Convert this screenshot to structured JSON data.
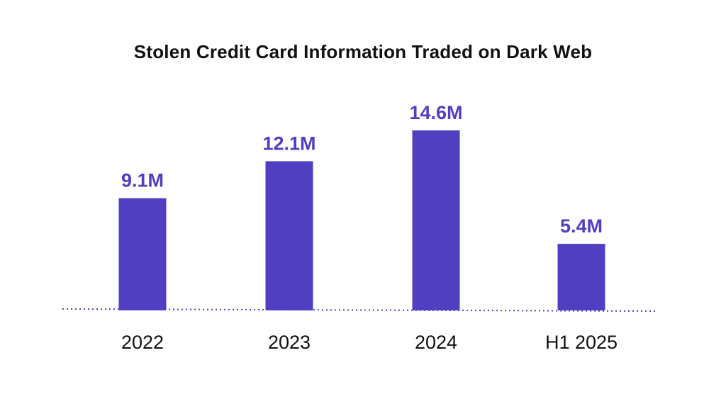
{
  "chart_data": {
    "type": "bar",
    "title": "Stolen Credit Card Information Traded on Dark Web",
    "categories": [
      "2022",
      "2023",
      "2024",
      "H1 2025"
    ],
    "values": [
      9.1,
      12.1,
      14.6,
      5.4
    ],
    "value_labels": [
      "9.1M",
      "12.1M",
      "14.6M",
      "5.4M"
    ],
    "xlabel": "",
    "ylabel": "",
    "ylim": [
      0,
      14.6
    ],
    "grid": false,
    "legend": "none",
    "colors": {
      "bar": "#503FC0",
      "value_label": "#503FC0",
      "baseline": "#503FC0"
    }
  }
}
